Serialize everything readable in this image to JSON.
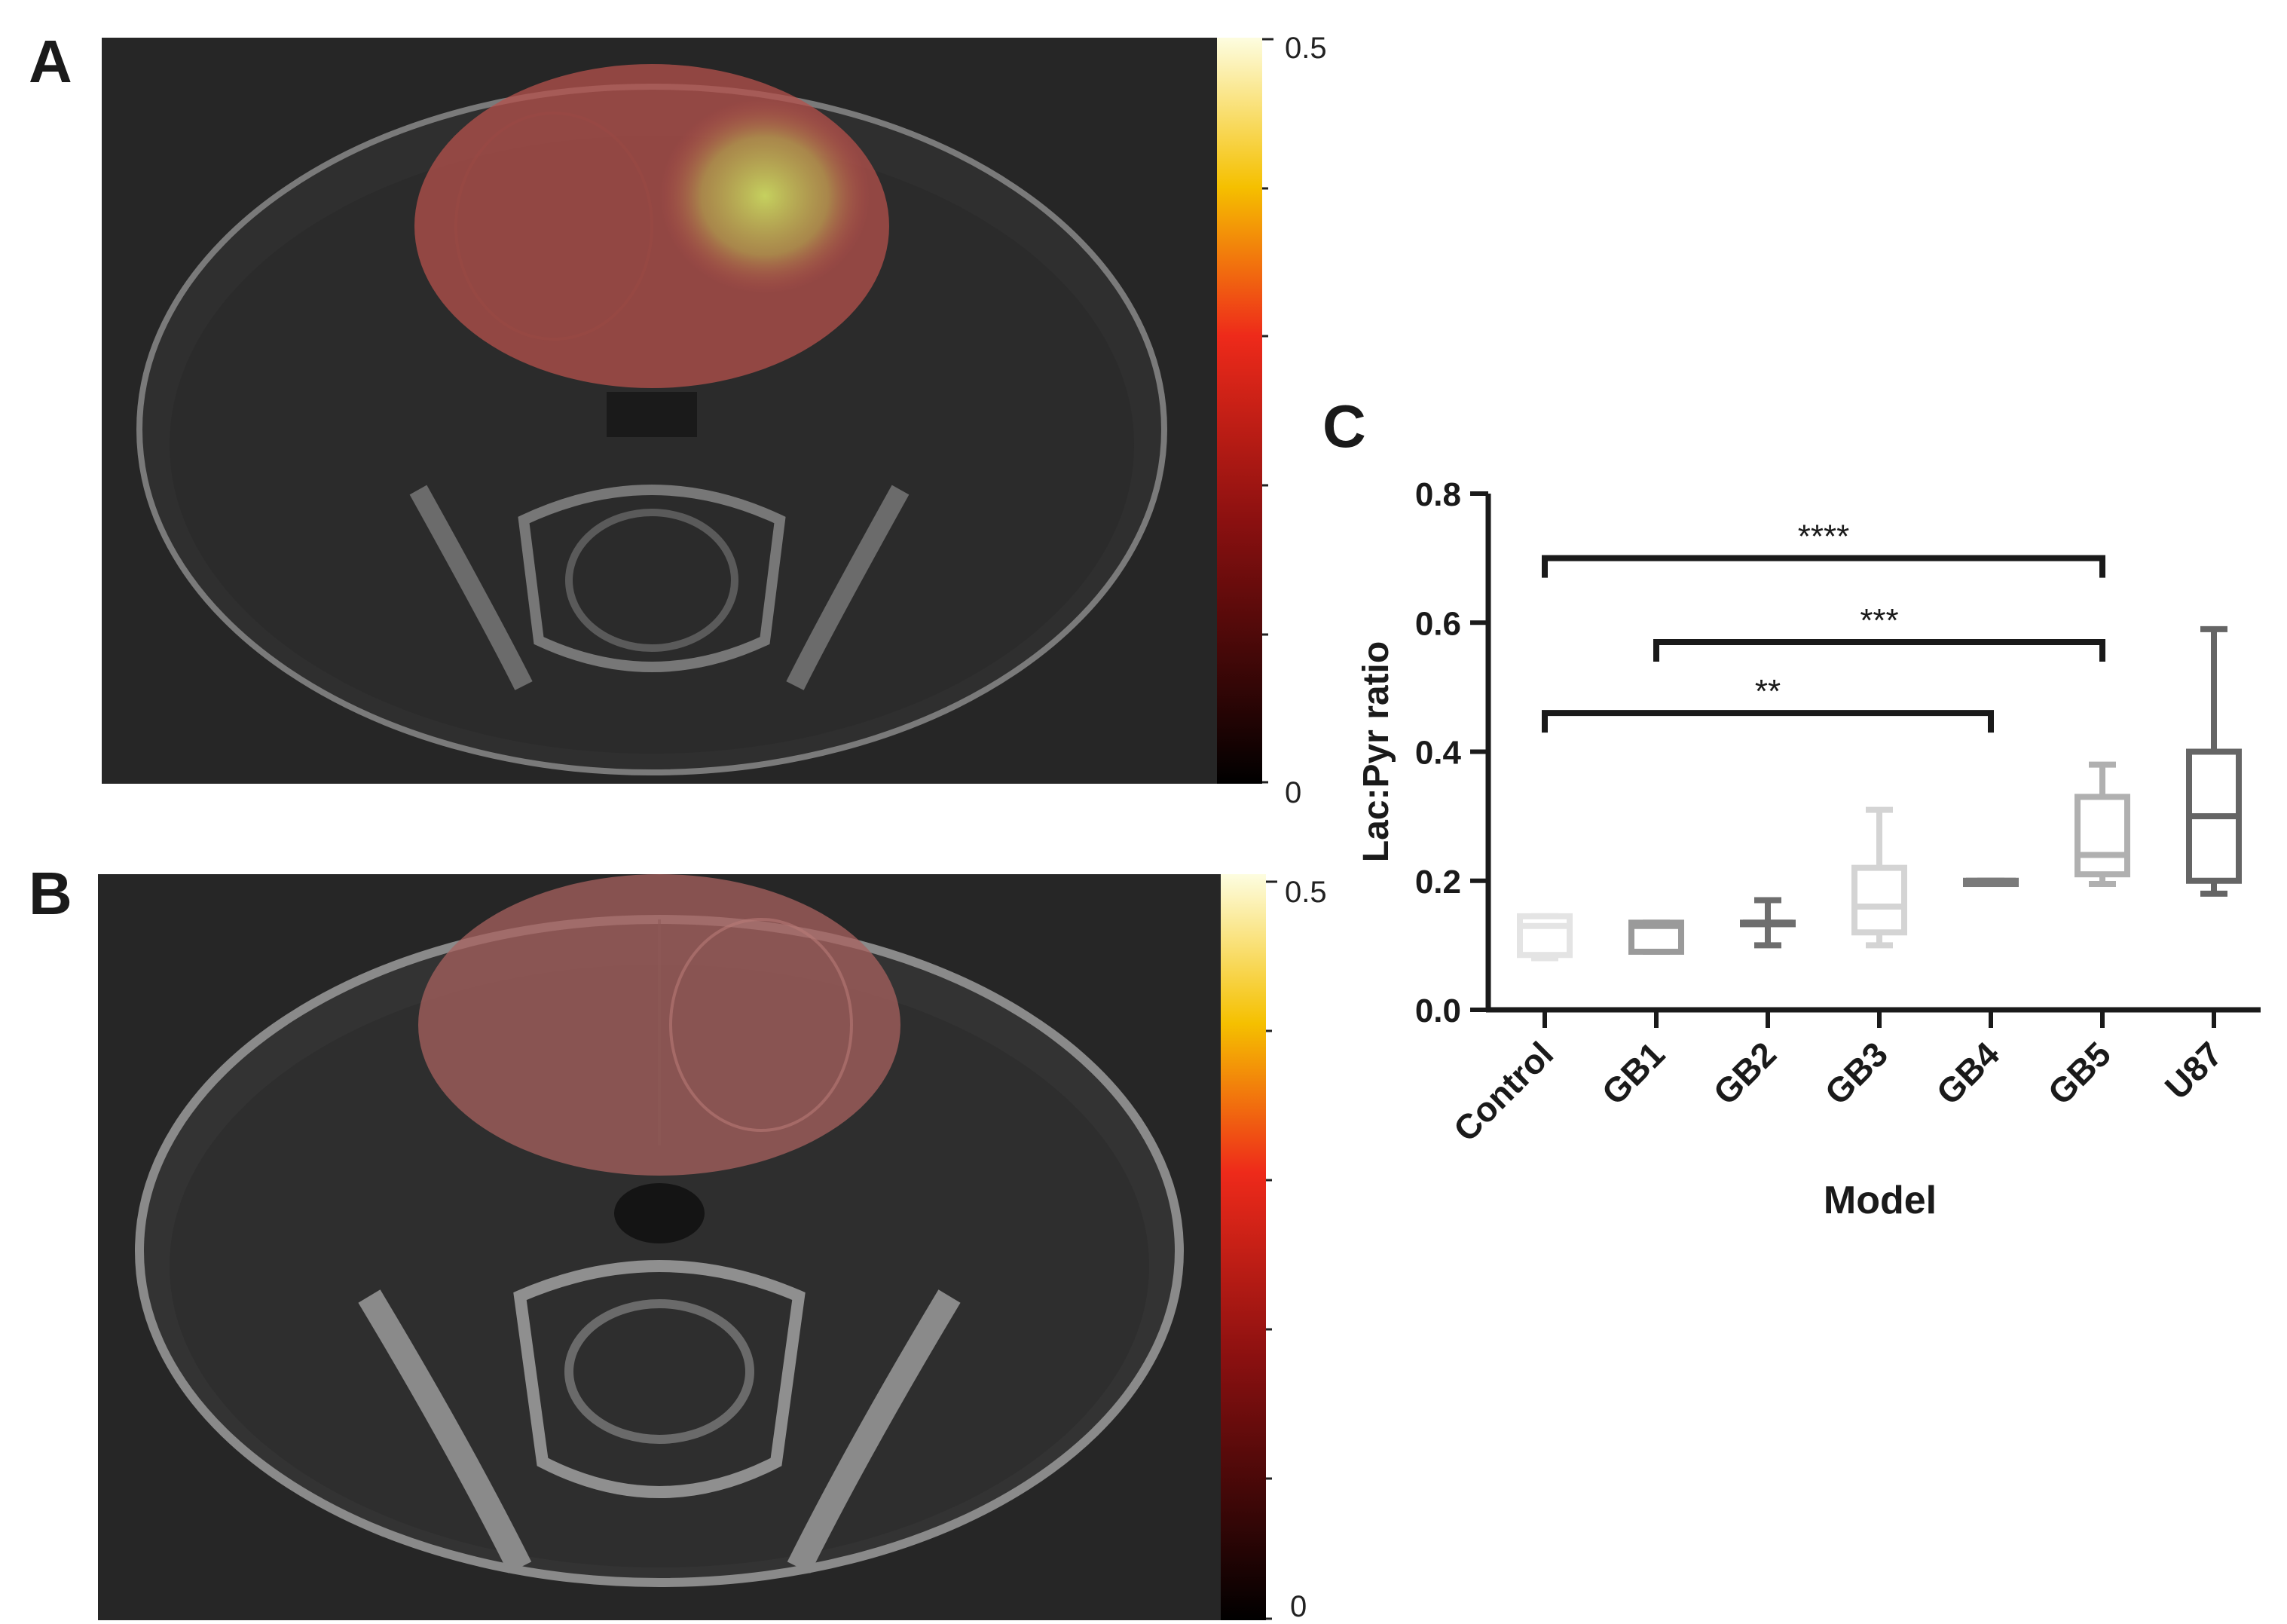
{
  "figure": {
    "panels": [
      {
        "letter": "A",
        "colorbar": {
          "max_label": "0.5",
          "min_label": "0"
        }
      },
      {
        "letter": "B",
        "colorbar": {
          "max_label": "0.5",
          "min_label": "0"
        }
      }
    ],
    "chart_letter": "C"
  },
  "colors": {
    "mri_background": "#2a2a2a",
    "overlay": "#c0504d",
    "hotspot": "#c8d860"
  },
  "chart_data": {
    "type": "box",
    "title": "",
    "xlabel": "Model",
    "ylabel": "Lac:Pyr ratio",
    "ylim": [
      0.0,
      0.8
    ],
    "yticks": [
      "0.0",
      "0.2",
      "0.4",
      "0.6",
      "0.8"
    ],
    "categories": [
      "Control",
      "GB1",
      "GB2",
      "GB3",
      "GB4",
      "GB5",
      "U87"
    ],
    "series": [
      {
        "category": "Control",
        "min": 0.08,
        "q1": 0.085,
        "median": 0.13,
        "q3": 0.145,
        "max": 0.145,
        "color": "#e4e4e4"
      },
      {
        "category": "GB1",
        "min": 0.09,
        "q1": 0.09,
        "median": 0.13,
        "q3": 0.135,
        "max": 0.135,
        "color": "#9a9a9a"
      },
      {
        "category": "GB2",
        "min": 0.1,
        "q1": 0.135,
        "median": 0.135,
        "q3": 0.135,
        "max": 0.17,
        "color": "#6e6e6e"
      },
      {
        "category": "GB3",
        "min": 0.1,
        "q1": 0.12,
        "median": 0.16,
        "q3": 0.22,
        "max": 0.31,
        "color": "#d4d4d4"
      },
      {
        "category": "GB4",
        "min": 0.195,
        "q1": 0.195,
        "median": 0.2,
        "q3": 0.2,
        "max": 0.2,
        "color": "#7a7a7a"
      },
      {
        "category": "GB5",
        "min": 0.195,
        "q1": 0.21,
        "median": 0.24,
        "q3": 0.33,
        "max": 0.38,
        "color": "#b0b0b0"
      },
      {
        "category": "U87",
        "min": 0.18,
        "q1": 0.2,
        "median": 0.3,
        "q3": 0.4,
        "max": 0.59,
        "color": "#656565"
      }
    ],
    "significance": [
      {
        "from": "Control",
        "to": "GB5",
        "y": 0.7,
        "label": "****"
      },
      {
        "from": "GB1",
        "to": "GB5",
        "y": 0.57,
        "label": "***"
      },
      {
        "from": "Control",
        "to": "GB4",
        "y": 0.46,
        "label": "**"
      }
    ],
    "grid": false,
    "legend": "none"
  }
}
